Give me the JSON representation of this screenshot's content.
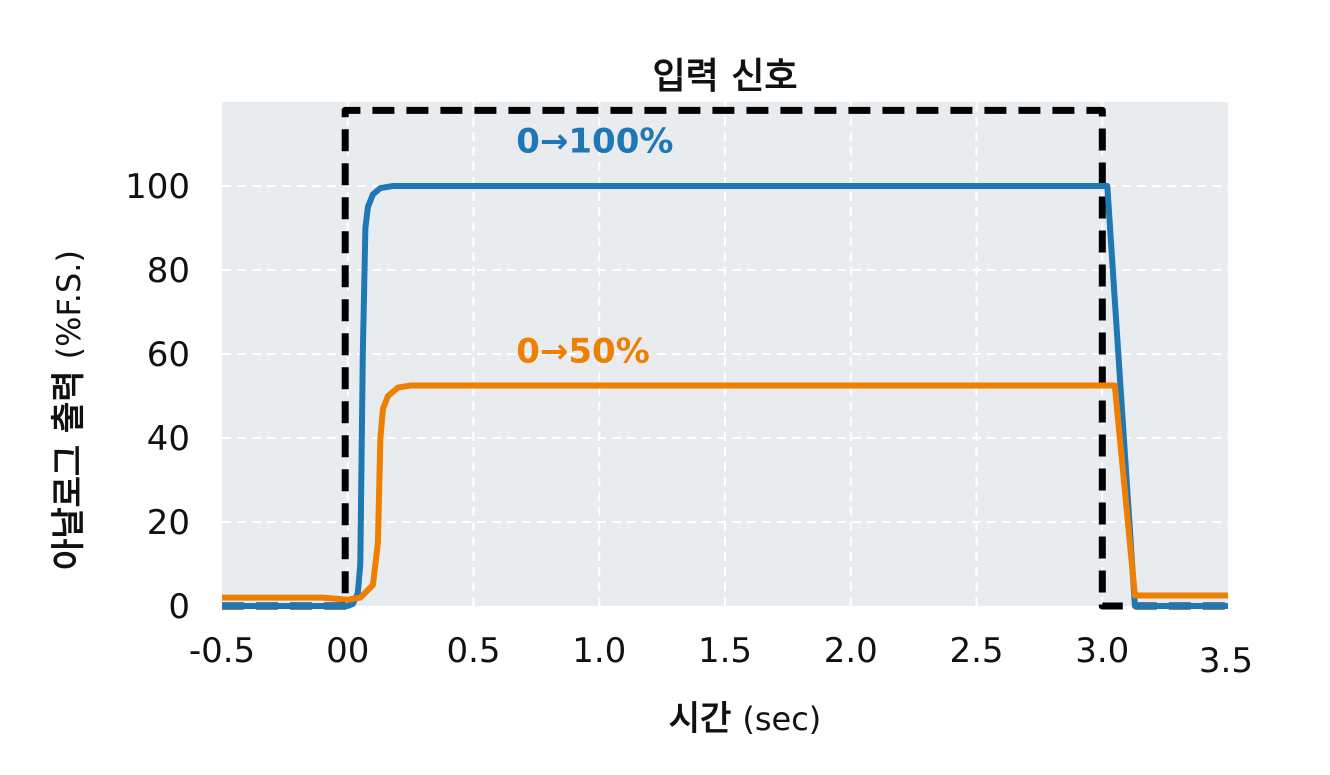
{
  "chart_data": {
    "type": "line",
    "title": "입력 신호",
    "xlabel": {
      "main": "시간",
      "unit": "(sec)"
    },
    "ylabel": {
      "main": "아날로그 출력",
      "unit": "(%F.S.)"
    },
    "xlim": [
      -0.5,
      3.5
    ],
    "ylim": [
      0,
      120
    ],
    "xticks": [
      {
        "value": -0.5,
        "label": "-0.5"
      },
      {
        "value": 0.0,
        "label": "00"
      },
      {
        "value": 0.5,
        "label": "0.5"
      },
      {
        "value": 1.0,
        "label": "1.0"
      },
      {
        "value": 1.5,
        "label": "1.5"
      },
      {
        "value": 2.0,
        "label": "2.0"
      },
      {
        "value": 2.5,
        "label": "2.5"
      },
      {
        "value": 3.0,
        "label": "3.0"
      },
      {
        "value": 3.5,
        "label": "3.5"
      }
    ],
    "yticks": [
      {
        "value": 0,
        "label": "0"
      },
      {
        "value": 20,
        "label": "20"
      },
      {
        "value": 40,
        "label": "40"
      },
      {
        "value": 60,
        "label": "60"
      },
      {
        "value": 80,
        "label": "80"
      },
      {
        "value": 100,
        "label": "100"
      }
    ],
    "grid": true,
    "series": [
      {
        "color": "#1f77b4",
        "style": "solid",
        "x": [
          -0.5,
          -0.1,
          0.0,
          0.02,
          0.04,
          0.05,
          0.06,
          0.07,
          0.08,
          0.1,
          0.13,
          0.18,
          0.25,
          3.02,
          3.13,
          3.5
        ],
        "y": [
          0,
          0,
          0,
          0.5,
          3,
          10,
          60,
          90,
          95,
          98,
          99.5,
          100,
          100,
          100,
          0,
          0
        ]
      },
      {
        "color": "#ef7f00",
        "style": "solid",
        "x": [
          -0.5,
          -0.1,
          0.0,
          0.05,
          0.1,
          0.12,
          0.13,
          0.14,
          0.16,
          0.2,
          0.25,
          0.3,
          3.05,
          3.13,
          3.5
        ],
        "y": [
          2,
          2,
          1.5,
          2,
          5,
          15,
          40,
          47,
          50,
          52,
          52.5,
          52.5,
          52.5,
          2.5,
          2.5
        ]
      },
      {
        "color": "#000000",
        "style": "dashed",
        "x": [
          -0.5,
          -0.01,
          -0.01,
          3.0,
          3.0,
          3.5
        ],
        "y": [
          0,
          0,
          118,
          118,
          0,
          0
        ]
      }
    ],
    "annotations": [
      {
        "text": "0→100%",
        "x": 0.67,
        "y": 108,
        "color": "#1f77b4"
      },
      {
        "text": "0→50%",
        "x": 0.67,
        "y": 58,
        "color": "#ef7f00"
      }
    ]
  }
}
